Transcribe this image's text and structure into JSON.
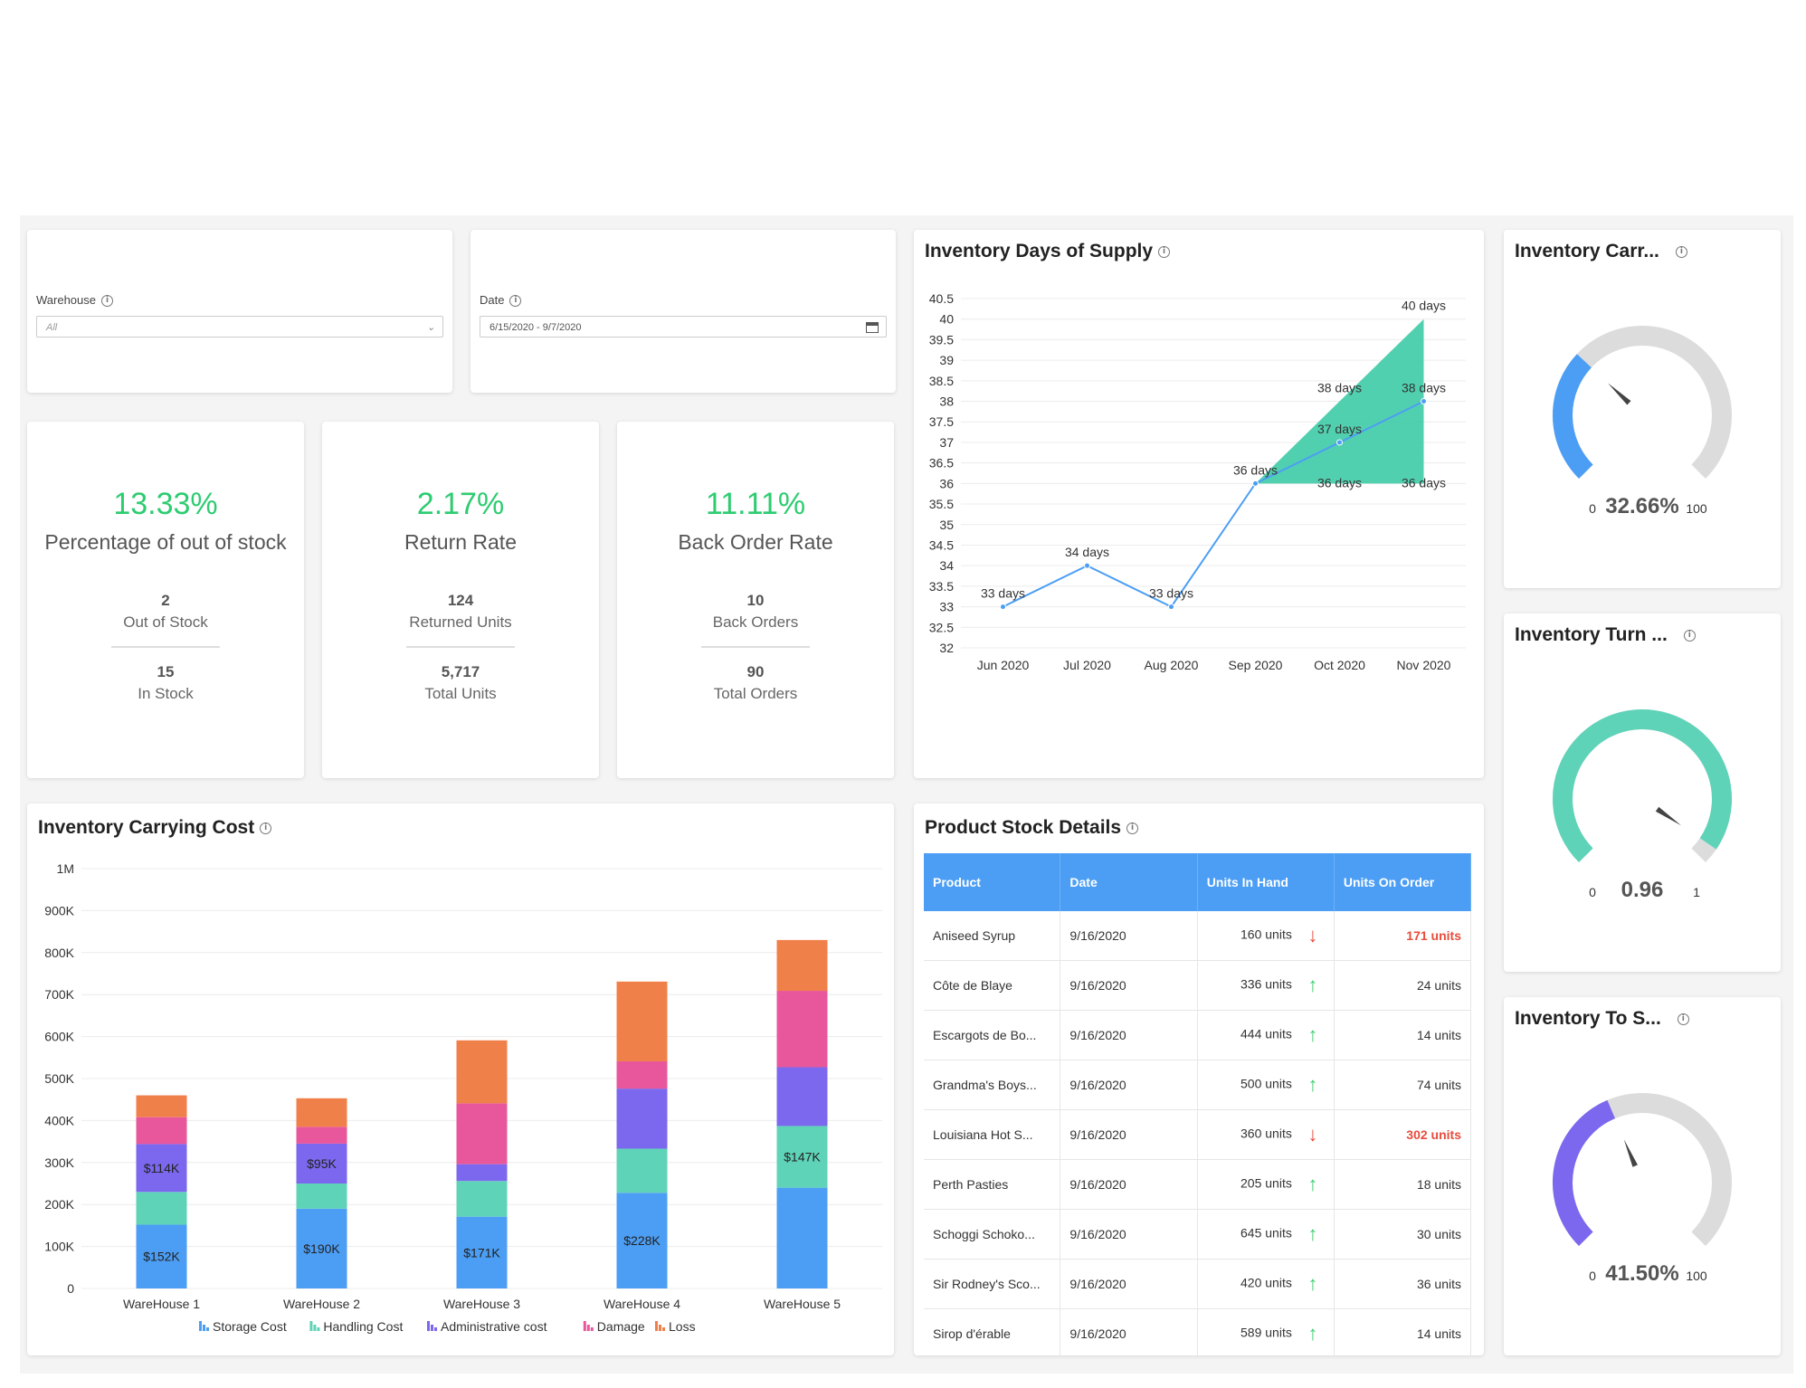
{
  "filters": {
    "warehouse": {
      "label": "Warehouse",
      "value": "All"
    },
    "date": {
      "label": "Date",
      "value": "6/15/2020 - 9/7/2020"
    }
  },
  "kpis": [
    {
      "percent": "13.33%",
      "label": "Percentage of out of stock",
      "n1": "2",
      "s1": "Out of Stock",
      "n2": "15",
      "s2": "In Stock"
    },
    {
      "percent": "2.17%",
      "label": "Return Rate",
      "n1": "124",
      "s1": "Returned Units",
      "n2": "5,717",
      "s2": "Total Units"
    },
    {
      "percent": "11.11%",
      "label": "Back Order Rate",
      "n1": "10",
      "s1": "Back Orders",
      "n2": "90",
      "s2": "Total Orders"
    }
  ],
  "days_supply": {
    "title": "Inventory Days of Supply",
    "chart_data": {
      "type": "line",
      "categories": [
        "Jun 2020",
        "Jul 2020",
        "Aug 2020",
        "Sep 2020",
        "Oct 2020",
        "Nov 2020"
      ],
      "series": [
        {
          "values": [
            33,
            34,
            33,
            36,
            37,
            38
          ],
          "labels": [
            "33 days",
            "34 days",
            "33 days",
            "36 days",
            "37 days",
            "38 days"
          ]
        }
      ],
      "band": {
        "start": "Sep 2020",
        "upper": [
          36,
          38,
          40
        ],
        "lower": [
          36,
          36,
          36
        ],
        "upper_labels": [
          "38 days",
          "40 days"
        ],
        "lower_labels": [
          "36 days",
          "36 days"
        ]
      },
      "y_ticks": [
        "32",
        "32.5",
        "33",
        "33.5",
        "34",
        "34.5",
        "35",
        "35.5",
        "36",
        "36.5",
        "37",
        "37.5",
        "38",
        "38.5",
        "39",
        "39.5",
        "40",
        "40.5"
      ],
      "ylim": [
        32,
        40.5
      ]
    }
  },
  "carrying_cost": {
    "title": "Inventory Carrying Cost",
    "chart_data": {
      "type": "bar",
      "stacked": true,
      "categories": [
        "WareHouse 1",
        "WareHouse 2",
        "WareHouse 3",
        "WareHouse 4",
        "WareHouse 5"
      ],
      "series": [
        {
          "name": "Storage Cost",
          "color": "#4c9ef4",
          "values": [
            152000,
            190000,
            171000,
            228000,
            240000
          ]
        },
        {
          "name": "Handling Cost",
          "color": "#5fd3b8",
          "values": [
            78000,
            60000,
            85000,
            105000,
            147000
          ]
        },
        {
          "name": "Administrative cost",
          "color": "#7b68ee",
          "values": [
            114000,
            95000,
            40000,
            143000,
            140000
          ]
        },
        {
          "name": "Damage",
          "color": "#e8579b",
          "values": [
            64000,
            40000,
            145000,
            65000,
            182000
          ]
        },
        {
          "name": "Loss",
          "color": "#f0804a",
          "values": [
            52000,
            68000,
            150000,
            190000,
            121000
          ]
        }
      ],
      "bar_labels": [
        {
          "series": "Storage Cost",
          "texts": [
            "$152K",
            "$190K",
            "$171K",
            "$228K",
            ""
          ]
        },
        {
          "series": "Handling Cost",
          "texts": [
            "",
            "",
            "",
            "",
            "$147K"
          ]
        },
        {
          "series": "Administrative cost",
          "texts": [
            "$114K",
            "$95K",
            "",
            "",
            ""
          ]
        }
      ],
      "y_ticks": [
        "0",
        "100K",
        "200K",
        "300K",
        "400K",
        "500K",
        "600K",
        "700K",
        "800K",
        "900K",
        "1M"
      ],
      "ylim": [
        0,
        1000000
      ],
      "legend": "bottom"
    }
  },
  "stock_details": {
    "title": "Product Stock Details",
    "columns": [
      "Product",
      "Date",
      "Units In Hand",
      "Units On Order"
    ],
    "rows": [
      {
        "product": "Aniseed Syrup",
        "date": "9/16/2020",
        "in_hand": "160 units",
        "trend": "down",
        "on_order": "171 units",
        "alert": true
      },
      {
        "product": "Côte de Blaye",
        "date": "9/16/2020",
        "in_hand": "336 units",
        "trend": "up",
        "on_order": "24 units",
        "alert": false
      },
      {
        "product": "Escargots de Bo...",
        "date": "9/16/2020",
        "in_hand": "444 units",
        "trend": "up",
        "on_order": "14 units",
        "alert": false
      },
      {
        "product": "Grandma's Boys...",
        "date": "9/16/2020",
        "in_hand": "500 units",
        "trend": "up",
        "on_order": "74 units",
        "alert": false
      },
      {
        "product": "Louisiana Hot S...",
        "date": "9/16/2020",
        "in_hand": "360 units",
        "trend": "down",
        "on_order": "302 units",
        "alert": true
      },
      {
        "product": "Perth Pasties",
        "date": "9/16/2020",
        "in_hand": "205 units",
        "trend": "up",
        "on_order": "18 units",
        "alert": false
      },
      {
        "product": "Schoggi Schoko...",
        "date": "9/16/2020",
        "in_hand": "645 units",
        "trend": "up",
        "on_order": "30 units",
        "alert": false
      },
      {
        "product": "Sir Rodney's Sco...",
        "date": "9/16/2020",
        "in_hand": "420 units",
        "trend": "up",
        "on_order": "36 units",
        "alert": false
      },
      {
        "product": "Sirop d'érable",
        "date": "9/16/2020",
        "in_hand": "589 units",
        "trend": "up",
        "on_order": "14 units",
        "alert": false
      }
    ]
  },
  "gauges": [
    {
      "title": "Inventory Carr...",
      "value": "32.66%",
      "min": "0",
      "max": "100",
      "fraction": 0.3266,
      "color": "#4c9ef4"
    },
    {
      "title": "Inventory Turn ...",
      "value": "0.96",
      "min": "0",
      "max": "1",
      "fraction": 0.96,
      "color": "#5fd3b8"
    },
    {
      "title": "Inventory To S...",
      "value": "41.50%",
      "min": "0",
      "max": "100",
      "fraction": 0.415,
      "color": "#7b68ee"
    }
  ],
  "icons": {
    "info": "info-icon",
    "dropdown": "chevron-down-icon",
    "calendar": "calendar-icon"
  }
}
